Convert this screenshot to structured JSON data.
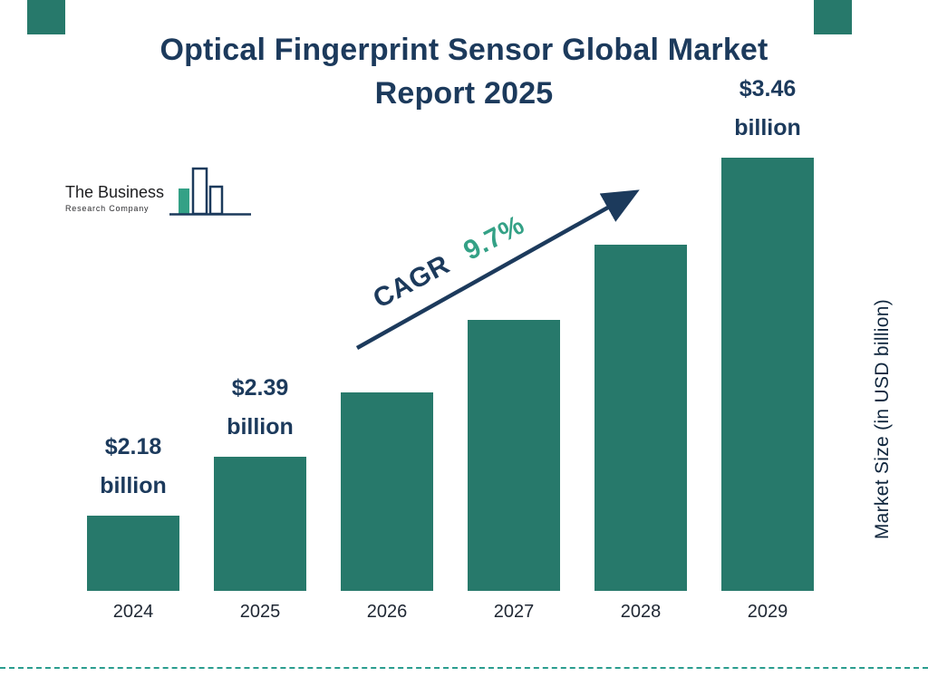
{
  "page": {
    "title_line1": "Optical Fingerprint Sensor Global Market",
    "title_line2": "Report 2025"
  },
  "logo": {
    "line1": "The Business",
    "line2": "Research Company"
  },
  "chart_data": {
    "type": "bar",
    "title": "Optical Fingerprint Sensor Global Market Report 2025",
    "categories": [
      "2024",
      "2025",
      "2026",
      "2027",
      "2028",
      "2029"
    ],
    "values": [
      2.18,
      2.39,
      2.62,
      2.88,
      3.15,
      3.46
    ],
    "value_labels": [
      "$2.18 billion",
      "$2.39 billion",
      "",
      "",
      "",
      "$3.46 billion"
    ],
    "xlabel": "",
    "ylabel": "Market Size (in USD billion)",
    "units": "USD billion",
    "grid": false,
    "legend": "none",
    "annotation": {
      "cagr_label": "CAGR",
      "cagr_value": "9.7%"
    },
    "colors": {
      "bar": "#27796b",
      "title": "#1c3a5c",
      "accent_green": "#34a186",
      "dashed_line": "#2a9d8f",
      "arrow": "#1c3a5c"
    }
  }
}
